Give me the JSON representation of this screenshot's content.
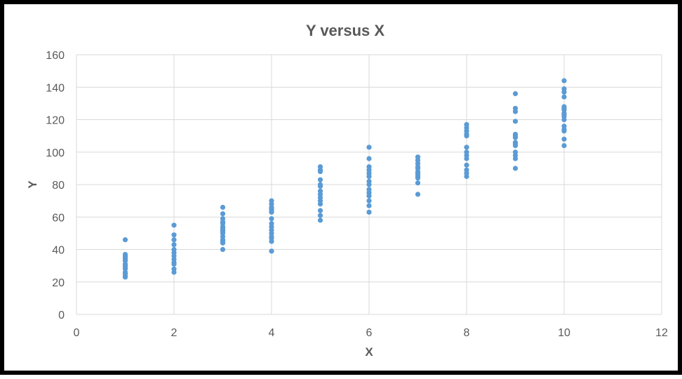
{
  "colors": {
    "marker": "#5b9bd5",
    "grid": "#d9d9d9",
    "text": "#595959",
    "border": "#000000"
  },
  "chart_data": {
    "type": "scatter",
    "title": "Y versus X",
    "xlabel": "X",
    "ylabel": "Y",
    "xlim": [
      0,
      12
    ],
    "ylim": [
      0,
      160
    ],
    "x_ticks": [
      0,
      2,
      4,
      6,
      8,
      10,
      12
    ],
    "y_ticks": [
      0,
      20,
      40,
      60,
      80,
      100,
      120,
      140,
      160
    ],
    "grid": true,
    "legend": "none",
    "points": [
      {
        "x": 1,
        "y": 46
      },
      {
        "x": 1,
        "y": 37
      },
      {
        "x": 1,
        "y": 36
      },
      {
        "x": 1,
        "y": 35
      },
      {
        "x": 1,
        "y": 34
      },
      {
        "x": 1,
        "y": 33
      },
      {
        "x": 1,
        "y": 31
      },
      {
        "x": 1,
        "y": 30
      },
      {
        "x": 1,
        "y": 29
      },
      {
        "x": 1,
        "y": 28
      },
      {
        "x": 1,
        "y": 26
      },
      {
        "x": 1,
        "y": 25
      },
      {
        "x": 1,
        "y": 24
      },
      {
        "x": 1,
        "y": 23
      },
      {
        "x": 2,
        "y": 55
      },
      {
        "x": 2,
        "y": 49
      },
      {
        "x": 2,
        "y": 46
      },
      {
        "x": 2,
        "y": 43
      },
      {
        "x": 2,
        "y": 40
      },
      {
        "x": 2,
        "y": 38
      },
      {
        "x": 2,
        "y": 36
      },
      {
        "x": 2,
        "y": 34
      },
      {
        "x": 2,
        "y": 32
      },
      {
        "x": 2,
        "y": 31
      },
      {
        "x": 2,
        "y": 28
      },
      {
        "x": 2,
        "y": 26
      },
      {
        "x": 3,
        "y": 66
      },
      {
        "x": 3,
        "y": 62
      },
      {
        "x": 3,
        "y": 59
      },
      {
        "x": 3,
        "y": 57
      },
      {
        "x": 3,
        "y": 56
      },
      {
        "x": 3,
        "y": 54
      },
      {
        "x": 3,
        "y": 53
      },
      {
        "x": 3,
        "y": 52
      },
      {
        "x": 3,
        "y": 51
      },
      {
        "x": 3,
        "y": 50
      },
      {
        "x": 3,
        "y": 48
      },
      {
        "x": 3,
        "y": 46
      },
      {
        "x": 3,
        "y": 45
      },
      {
        "x": 3,
        "y": 44
      },
      {
        "x": 3,
        "y": 40
      },
      {
        "x": 4,
        "y": 70
      },
      {
        "x": 4,
        "y": 68
      },
      {
        "x": 4,
        "y": 66
      },
      {
        "x": 4,
        "y": 65
      },
      {
        "x": 4,
        "y": 64
      },
      {
        "x": 4,
        "y": 63
      },
      {
        "x": 4,
        "y": 59
      },
      {
        "x": 4,
        "y": 56
      },
      {
        "x": 4,
        "y": 54
      },
      {
        "x": 4,
        "y": 52
      },
      {
        "x": 4,
        "y": 50
      },
      {
        "x": 4,
        "y": 48
      },
      {
        "x": 4,
        "y": 47
      },
      {
        "x": 4,
        "y": 45
      },
      {
        "x": 4,
        "y": 39
      },
      {
        "x": 5,
        "y": 91
      },
      {
        "x": 5,
        "y": 89
      },
      {
        "x": 5,
        "y": 88
      },
      {
        "x": 5,
        "y": 83
      },
      {
        "x": 5,
        "y": 80
      },
      {
        "x": 5,
        "y": 79
      },
      {
        "x": 5,
        "y": 76
      },
      {
        "x": 5,
        "y": 74
      },
      {
        "x": 5,
        "y": 72
      },
      {
        "x": 5,
        "y": 70
      },
      {
        "x": 5,
        "y": 68
      },
      {
        "x": 5,
        "y": 64
      },
      {
        "x": 5,
        "y": 61
      },
      {
        "x": 5,
        "y": 58
      },
      {
        "x": 6,
        "y": 103
      },
      {
        "x": 6,
        "y": 96
      },
      {
        "x": 6,
        "y": 91
      },
      {
        "x": 6,
        "y": 89
      },
      {
        "x": 6,
        "y": 87
      },
      {
        "x": 6,
        "y": 85
      },
      {
        "x": 6,
        "y": 82
      },
      {
        "x": 6,
        "y": 80
      },
      {
        "x": 6,
        "y": 77
      },
      {
        "x": 6,
        "y": 75
      },
      {
        "x": 6,
        "y": 73
      },
      {
        "x": 6,
        "y": 70
      },
      {
        "x": 6,
        "y": 67
      },
      {
        "x": 6,
        "y": 63
      },
      {
        "x": 7,
        "y": 97
      },
      {
        "x": 7,
        "y": 95
      },
      {
        "x": 7,
        "y": 93
      },
      {
        "x": 7,
        "y": 91
      },
      {
        "x": 7,
        "y": 90
      },
      {
        "x": 7,
        "y": 88
      },
      {
        "x": 7,
        "y": 87
      },
      {
        "x": 7,
        "y": 86
      },
      {
        "x": 7,
        "y": 85
      },
      {
        "x": 7,
        "y": 84
      },
      {
        "x": 7,
        "y": 81
      },
      {
        "x": 7,
        "y": 74
      },
      {
        "x": 8,
        "y": 117
      },
      {
        "x": 8,
        "y": 115
      },
      {
        "x": 8,
        "y": 113
      },
      {
        "x": 8,
        "y": 111
      },
      {
        "x": 8,
        "y": 110
      },
      {
        "x": 8,
        "y": 103
      },
      {
        "x": 8,
        "y": 100
      },
      {
        "x": 8,
        "y": 98
      },
      {
        "x": 8,
        "y": 96
      },
      {
        "x": 8,
        "y": 92
      },
      {
        "x": 8,
        "y": 89
      },
      {
        "x": 8,
        "y": 87
      },
      {
        "x": 8,
        "y": 85
      },
      {
        "x": 9,
        "y": 136
      },
      {
        "x": 9,
        "y": 127
      },
      {
        "x": 9,
        "y": 125
      },
      {
        "x": 9,
        "y": 119
      },
      {
        "x": 9,
        "y": 111
      },
      {
        "x": 9,
        "y": 110
      },
      {
        "x": 9,
        "y": 109
      },
      {
        "x": 9,
        "y": 106
      },
      {
        "x": 9,
        "y": 105
      },
      {
        "x": 9,
        "y": 104
      },
      {
        "x": 9,
        "y": 100
      },
      {
        "x": 9,
        "y": 98
      },
      {
        "x": 9,
        "y": 96
      },
      {
        "x": 9,
        "y": 90
      },
      {
        "x": 10,
        "y": 144
      },
      {
        "x": 10,
        "y": 139
      },
      {
        "x": 10,
        "y": 137
      },
      {
        "x": 10,
        "y": 134
      },
      {
        "x": 10,
        "y": 128
      },
      {
        "x": 10,
        "y": 127
      },
      {
        "x": 10,
        "y": 126
      },
      {
        "x": 10,
        "y": 124
      },
      {
        "x": 10,
        "y": 123
      },
      {
        "x": 10,
        "y": 122
      },
      {
        "x": 10,
        "y": 120
      },
      {
        "x": 10,
        "y": 116
      },
      {
        "x": 10,
        "y": 114
      },
      {
        "x": 10,
        "y": 113
      },
      {
        "x": 10,
        "y": 108
      },
      {
        "x": 10,
        "y": 104
      }
    ]
  }
}
